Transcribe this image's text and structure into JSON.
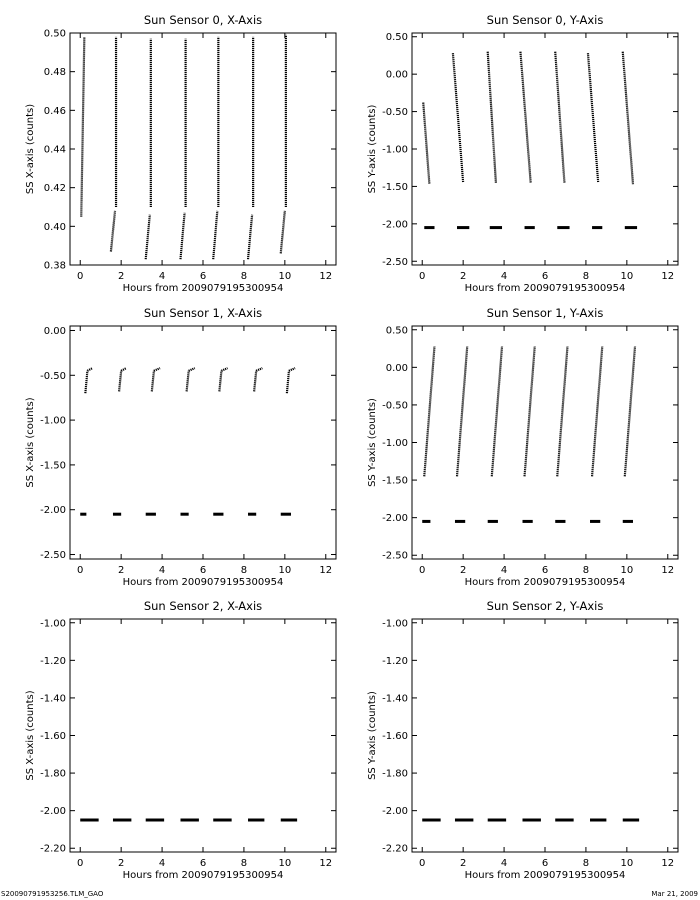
{
  "footer": {
    "filename": "S20090791953256.TLM_GAO",
    "date": "Mar 21, 2009"
  },
  "chart_data": [
    {
      "type": "scatter",
      "title": "Sun Sensor 0, X-Axis",
      "xlabel": "Hours from 2009079195300954",
      "ylabel": "SS X-axis (counts)",
      "xlim": [
        -0.5,
        12.5
      ],
      "ylim": [
        0.38,
        0.5
      ],
      "xticks": [
        0,
        2,
        4,
        6,
        8,
        10,
        12
      ],
      "yticks": [
        0.38,
        0.4,
        0.42,
        0.44,
        0.46,
        0.48,
        0.5
      ],
      "ytick_labels": [
        "0.38",
        "0.40",
        "0.42",
        "0.44",
        "0.46",
        "0.48",
        "0.50"
      ],
      "segments": [
        {
          "x0": 0.05,
          "x1": 0.2,
          "y0": 0.405,
          "y1": 0.498
        },
        {
          "x0": 1.5,
          "x1": 1.7,
          "y0": 0.387,
          "y1": 0.408
        },
        {
          "x0": 1.75,
          "x1": 1.75,
          "y0": 0.41,
          "y1": 0.498
        },
        {
          "x0": 3.2,
          "x1": 3.4,
          "y0": 0.383,
          "y1": 0.406
        },
        {
          "x0": 3.45,
          "x1": 3.45,
          "y0": 0.41,
          "y1": 0.497
        },
        {
          "x0": 4.9,
          "x1": 5.1,
          "y0": 0.383,
          "y1": 0.407
        },
        {
          "x0": 5.15,
          "x1": 5.15,
          "y0": 0.41,
          "y1": 0.497
        },
        {
          "x0": 6.5,
          "x1": 6.7,
          "y0": 0.383,
          "y1": 0.408
        },
        {
          "x0": 6.75,
          "x1": 6.75,
          "y0": 0.41,
          "y1": 0.498
        },
        {
          "x0": 8.2,
          "x1": 8.4,
          "y0": 0.383,
          "y1": 0.406
        },
        {
          "x0": 8.45,
          "x1": 8.45,
          "y0": 0.41,
          "y1": 0.498
        },
        {
          "x0": 9.8,
          "x1": 10.0,
          "y0": 0.386,
          "y1": 0.408
        },
        {
          "x0": 10.05,
          "x1": 10.05,
          "y0": 0.41,
          "y1": 0.499
        }
      ]
    },
    {
      "type": "scatter",
      "title": "Sun Sensor 0, Y-Axis",
      "xlabel": "Hours from 2009079195300954",
      "ylabel": "SS Y-axis (counts)",
      "xlim": [
        -0.5,
        12.5
      ],
      "ylim": [
        -2.55,
        0.55
      ],
      "xticks": [
        0,
        2,
        4,
        6,
        8,
        10,
        12
      ],
      "yticks": [
        -2.5,
        -2.0,
        -1.5,
        -1.0,
        -0.5,
        0.0,
        0.5
      ],
      "ytick_labels": [
        "-2.50",
        "-2.00",
        "-1.50",
        "-1.00",
        "-0.50",
        "0.00",
        "0.50"
      ],
      "segments": [
        {
          "x0": 0.05,
          "x1": 0.35,
          "y0": -0.38,
          "y1": -1.47
        },
        {
          "x0": 1.5,
          "x1": 2.0,
          "y0": 0.28,
          "y1": -1.45
        },
        {
          "x0": 3.2,
          "x1": 3.6,
          "y0": 0.3,
          "y1": -1.45
        },
        {
          "x0": 4.8,
          "x1": 5.3,
          "y0": 0.3,
          "y1": -1.45
        },
        {
          "x0": 6.5,
          "x1": 6.95,
          "y0": 0.3,
          "y1": -1.45
        },
        {
          "x0": 8.1,
          "x1": 8.6,
          "y0": 0.28,
          "y1": -1.45
        },
        {
          "x0": 9.8,
          "x1": 10.3,
          "y0": 0.3,
          "y1": -1.47
        },
        {
          "x0": 0.1,
          "x1": 0.6,
          "y0": -2.05,
          "y1": -2.05
        },
        {
          "x0": 1.7,
          "x1": 2.3,
          "y0": -2.05,
          "y1": -2.05
        },
        {
          "x0": 3.3,
          "x1": 3.9,
          "y0": -2.05,
          "y1": -2.05
        },
        {
          "x0": 5.0,
          "x1": 5.5,
          "y0": -2.05,
          "y1": -2.05
        },
        {
          "x0": 6.6,
          "x1": 7.2,
          "y0": -2.05,
          "y1": -2.05
        },
        {
          "x0": 8.3,
          "x1": 8.8,
          "y0": -2.05,
          "y1": -2.05
        },
        {
          "x0": 9.9,
          "x1": 10.5,
          "y0": -2.05,
          "y1": -2.05
        }
      ]
    },
    {
      "type": "scatter",
      "title": "Sun Sensor 1, X-Axis",
      "xlabel": "Hours from 2009079195300954",
      "ylabel": "SS X-axis (counts)",
      "xlim": [
        -0.5,
        12.5
      ],
      "ylim": [
        -2.55,
        0.05
      ],
      "xticks": [
        0,
        2,
        4,
        6,
        8,
        10,
        12
      ],
      "yticks": [
        -2.5,
        -2.0,
        -1.5,
        -1.0,
        -0.5,
        0.0
      ],
      "ytick_labels": [
        "-2.50",
        "-2.00",
        "-1.50",
        "-1.00",
        "-0.50",
        "0.00"
      ],
      "segments": [
        {
          "x0": 0.25,
          "x1": 0.35,
          "y0": -0.7,
          "y1": -0.45
        },
        {
          "x0": 0.35,
          "x1": 0.6,
          "y0": -0.45,
          "y1": -0.42
        },
        {
          "x0": 1.9,
          "x1": 2.0,
          "y0": -0.68,
          "y1": -0.45
        },
        {
          "x0": 2.0,
          "x1": 2.25,
          "y0": -0.45,
          "y1": -0.42
        },
        {
          "x0": 3.5,
          "x1": 3.6,
          "y0": -0.68,
          "y1": -0.45
        },
        {
          "x0": 3.6,
          "x1": 3.9,
          "y0": -0.45,
          "y1": -0.42
        },
        {
          "x0": 5.2,
          "x1": 5.3,
          "y0": -0.68,
          "y1": -0.45
        },
        {
          "x0": 5.3,
          "x1": 5.6,
          "y0": -0.45,
          "y1": -0.42
        },
        {
          "x0": 6.8,
          "x1": 6.9,
          "y0": -0.68,
          "y1": -0.45
        },
        {
          "x0": 6.9,
          "x1": 7.2,
          "y0": -0.45,
          "y1": -0.42
        },
        {
          "x0": 8.5,
          "x1": 8.6,
          "y0": -0.68,
          "y1": -0.45
        },
        {
          "x0": 8.6,
          "x1": 8.9,
          "y0": -0.45,
          "y1": -0.42
        },
        {
          "x0": 10.1,
          "x1": 10.2,
          "y0": -0.7,
          "y1": -0.45
        },
        {
          "x0": 10.2,
          "x1": 10.5,
          "y0": -0.45,
          "y1": -0.42
        },
        {
          "x0": 0.0,
          "x1": 0.3,
          "y0": -2.05,
          "y1": -2.05
        },
        {
          "x0": 1.6,
          "x1": 2.0,
          "y0": -2.05,
          "y1": -2.05
        },
        {
          "x0": 3.2,
          "x1": 3.7,
          "y0": -2.05,
          "y1": -2.05
        },
        {
          "x0": 4.9,
          "x1": 5.3,
          "y0": -2.05,
          "y1": -2.05
        },
        {
          "x0": 6.5,
          "x1": 7.0,
          "y0": -2.05,
          "y1": -2.05
        },
        {
          "x0": 8.2,
          "x1": 8.6,
          "y0": -2.05,
          "y1": -2.05
        },
        {
          "x0": 9.8,
          "x1": 10.3,
          "y0": -2.05,
          "y1": -2.05
        }
      ]
    },
    {
      "type": "scatter",
      "title": "Sun Sensor 1, Y-Axis",
      "xlabel": "Hours from 2009079195300954",
      "ylabel": "SS Y-axis (counts)",
      "xlim": [
        -0.5,
        12.5
      ],
      "ylim": [
        -2.55,
        0.55
      ],
      "xticks": [
        0,
        2,
        4,
        6,
        8,
        10,
        12
      ],
      "yticks": [
        -2.5,
        -2.0,
        -1.5,
        -1.0,
        -0.5,
        0.0,
        0.5
      ],
      "ytick_labels": [
        "-2.50",
        "-2.00",
        "-1.50",
        "-1.00",
        "-0.50",
        "0.00",
        "0.50"
      ],
      "segments": [
        {
          "x0": 0.1,
          "x1": 0.6,
          "y0": -1.45,
          "y1": 0.28
        },
        {
          "x0": 1.7,
          "x1": 2.2,
          "y0": -1.45,
          "y1": 0.28
        },
        {
          "x0": 3.4,
          "x1": 3.9,
          "y0": -1.45,
          "y1": 0.28
        },
        {
          "x0": 5.0,
          "x1": 5.5,
          "y0": -1.45,
          "y1": 0.28
        },
        {
          "x0": 6.6,
          "x1": 7.1,
          "y0": -1.45,
          "y1": 0.28
        },
        {
          "x0": 8.3,
          "x1": 8.8,
          "y0": -1.45,
          "y1": 0.28
        },
        {
          "x0": 9.9,
          "x1": 10.4,
          "y0": -1.45,
          "y1": 0.28
        },
        {
          "x0": 0.0,
          "x1": 0.4,
          "y0": -2.05,
          "y1": -2.05
        },
        {
          "x0": 1.6,
          "x1": 2.1,
          "y0": -2.05,
          "y1": -2.05
        },
        {
          "x0": 3.2,
          "x1": 3.7,
          "y0": -2.05,
          "y1": -2.05
        },
        {
          "x0": 4.9,
          "x1": 5.4,
          "y0": -2.05,
          "y1": -2.05
        },
        {
          "x0": 6.5,
          "x1": 7.0,
          "y0": -2.05,
          "y1": -2.05
        },
        {
          "x0": 8.2,
          "x1": 8.7,
          "y0": -2.05,
          "y1": -2.05
        },
        {
          "x0": 9.8,
          "x1": 10.3,
          "y0": -2.05,
          "y1": -2.05
        }
      ]
    },
    {
      "type": "scatter",
      "title": "Sun Sensor 2, X-Axis",
      "xlabel": "Hours from 2009079195300954",
      "ylabel": "SS X-axis (counts)",
      "xlim": [
        -0.5,
        12.5
      ],
      "ylim": [
        -2.22,
        -0.98
      ],
      "xticks": [
        0,
        2,
        4,
        6,
        8,
        10,
        12
      ],
      "yticks": [
        -2.2,
        -2.0,
        -1.8,
        -1.6,
        -1.4,
        -1.2,
        -1.0
      ],
      "ytick_labels": [
        "-2.20",
        "-2.00",
        "-1.80",
        "-1.60",
        "-1.40",
        "-1.20",
        "-1.00"
      ],
      "segments": [
        {
          "x0": 0.0,
          "x1": 0.9,
          "y0": -2.05,
          "y1": -2.05
        },
        {
          "x0": 1.6,
          "x1": 2.5,
          "y0": -2.05,
          "y1": -2.05
        },
        {
          "x0": 3.2,
          "x1": 4.1,
          "y0": -2.05,
          "y1": -2.05
        },
        {
          "x0": 4.9,
          "x1": 5.8,
          "y0": -2.05,
          "y1": -2.05
        },
        {
          "x0": 6.5,
          "x1": 7.4,
          "y0": -2.05,
          "y1": -2.05
        },
        {
          "x0": 8.2,
          "x1": 9.0,
          "y0": -2.05,
          "y1": -2.05
        },
        {
          "x0": 9.8,
          "x1": 10.6,
          "y0": -2.05,
          "y1": -2.05
        }
      ]
    },
    {
      "type": "scatter",
      "title": "Sun Sensor 2, Y-Axis",
      "xlabel": "Hours from 2009079195300954",
      "ylabel": "SS Y-axis (counts)",
      "xlim": [
        -0.5,
        12.5
      ],
      "ylim": [
        -2.22,
        -0.98
      ],
      "xticks": [
        0,
        2,
        4,
        6,
        8,
        10,
        12
      ],
      "yticks": [
        -2.2,
        -2.0,
        -1.8,
        -1.6,
        -1.4,
        -1.2,
        -1.0
      ],
      "ytick_labels": [
        "-2.20",
        "-2.00",
        "-1.80",
        "-1.60",
        "-1.40",
        "-1.20",
        "-1.00"
      ],
      "segments": [
        {
          "x0": 0.0,
          "x1": 0.9,
          "y0": -2.05,
          "y1": -2.05
        },
        {
          "x0": 1.6,
          "x1": 2.5,
          "y0": -2.05,
          "y1": -2.05
        },
        {
          "x0": 3.2,
          "x1": 4.1,
          "y0": -2.05,
          "y1": -2.05
        },
        {
          "x0": 4.9,
          "x1": 5.8,
          "y0": -2.05,
          "y1": -2.05
        },
        {
          "x0": 6.5,
          "x1": 7.4,
          "y0": -2.05,
          "y1": -2.05
        },
        {
          "x0": 8.2,
          "x1": 9.0,
          "y0": -2.05,
          "y1": -2.05
        },
        {
          "x0": 9.8,
          "x1": 10.6,
          "y0": -2.05,
          "y1": -2.05
        }
      ]
    }
  ]
}
